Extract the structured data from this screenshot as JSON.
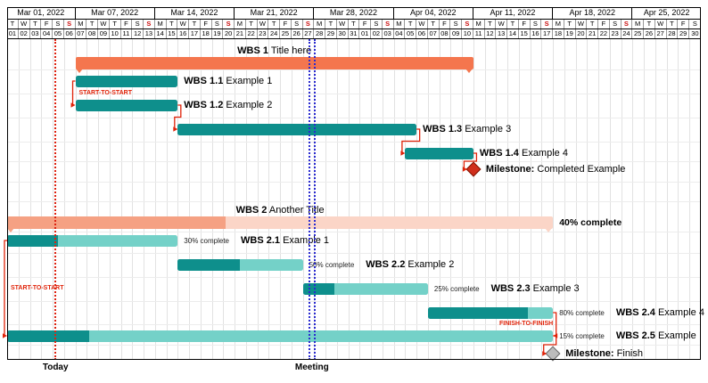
{
  "header": {
    "weeks": [
      {
        "label": "Mar 01, 2022",
        "days": 6
      },
      {
        "label": "Mar 07, 2022",
        "days": 7
      },
      {
        "label": "Mar 14, 2022",
        "days": 7
      },
      {
        "label": "Mar 21, 2022",
        "days": 7
      },
      {
        "label": "Mar 28, 2022",
        "days": 7
      },
      {
        "label": "Apr 04, 2022",
        "days": 7
      },
      {
        "label": "Apr 11, 2022",
        "days": 7
      },
      {
        "label": "Apr 18, 2022",
        "days": 7
      },
      {
        "label": "Apr 25, 2022",
        "days": 6
      }
    ],
    "day_letters": [
      "T",
      "W",
      "T",
      "F",
      "S",
      "S",
      "M",
      "T",
      "W",
      "T",
      "F",
      "S",
      "S",
      "M",
      "T",
      "W",
      "T",
      "F",
      "S",
      "S",
      "M",
      "T",
      "W",
      "T",
      "F",
      "S",
      "S",
      "M",
      "T",
      "W",
      "T",
      "F",
      "S",
      "S",
      "M",
      "T",
      "W",
      "T",
      "F",
      "S",
      "S",
      "M",
      "T",
      "W",
      "T",
      "F",
      "S",
      "S",
      "M",
      "T",
      "W",
      "T",
      "F",
      "S",
      "S",
      "M",
      "T",
      "W",
      "T",
      "F",
      "S"
    ],
    "day_numbers": [
      "01",
      "02",
      "03",
      "04",
      "05",
      "06",
      "07",
      "08",
      "09",
      "10",
      "11",
      "12",
      "13",
      "14",
      "15",
      "16",
      "17",
      "18",
      "19",
      "20",
      "21",
      "22",
      "23",
      "24",
      "25",
      "26",
      "27",
      "28",
      "29",
      "30",
      "31",
      "01",
      "02",
      "03",
      "04",
      "05",
      "06",
      "07",
      "08",
      "09",
      "10",
      "11",
      "12",
      "13",
      "14",
      "15",
      "16",
      "17",
      "18",
      "19",
      "20",
      "21",
      "22",
      "23",
      "24",
      "25",
      "26",
      "27",
      "28",
      "29",
      "30"
    ],
    "sundays": [
      5,
      12,
      19,
      26,
      33,
      40,
      47,
      54
    ]
  },
  "chart_data": {
    "type": "gantt",
    "timeline": {
      "start_label": "Mar 01, 2022",
      "end_label": "Apr 30, 2022",
      "total_days": 61,
      "unit": "days"
    },
    "items": [
      {
        "id": "g1",
        "kind": "group",
        "row": 0,
        "start": 6,
        "end": 41,
        "label_bold": "WBS 1",
        "label_rest": " Title here"
      },
      {
        "id": "t11",
        "kind": "task",
        "row": 1,
        "start": 6,
        "end": 15,
        "label_bold": "WBS 1.1",
        "label_rest": " Example 1"
      },
      {
        "id": "t12",
        "kind": "task",
        "row": 2,
        "start": 6,
        "end": 15,
        "label_bold": "WBS 1.2",
        "label_rest": " Example 2"
      },
      {
        "id": "t13",
        "kind": "task",
        "row": 3,
        "start": 15,
        "end": 36,
        "label_bold": "WBS 1.3",
        "label_rest": " Example 3"
      },
      {
        "id": "t14",
        "kind": "task",
        "row": 4,
        "start": 35,
        "end": 41,
        "label_bold": "WBS 1.4",
        "label_rest": " Example 4"
      },
      {
        "id": "ms1",
        "kind": "milestone",
        "row": 5,
        "at": 41,
        "color": "red",
        "label_bold": "Milestone:",
        "label_rest": " Completed Example"
      },
      {
        "id": "g2",
        "kind": "group",
        "row": 6,
        "start": 0,
        "end": 48,
        "progress": 40,
        "progress_label": "40% complete",
        "label_bold": "WBS 2",
        "label_rest": " Another Title"
      },
      {
        "id": "t21",
        "kind": "task",
        "row": 7,
        "start": 0,
        "end": 15,
        "progress": 30,
        "progress_label": "30% complete",
        "label_bold": "WBS 2.1",
        "label_rest": " Example 1"
      },
      {
        "id": "t22",
        "kind": "task",
        "row": 8,
        "start": 15,
        "end": 26,
        "progress": 50,
        "progress_label": "50% complete",
        "label_bold": "WBS 2.2",
        "label_rest": " Example 2"
      },
      {
        "id": "t23",
        "kind": "task",
        "row": 9,
        "start": 26,
        "end": 37,
        "progress": 25,
        "progress_label": "25% complete",
        "label_bold": "WBS 2.3",
        "label_rest": " Example 3"
      },
      {
        "id": "t24",
        "kind": "task",
        "row": 10,
        "start": 37,
        "end": 48,
        "progress": 80,
        "progress_label": "80% complete",
        "label_bold": "WBS 2.4",
        "label_rest": " Example 4"
      },
      {
        "id": "t25",
        "kind": "task",
        "row": 11,
        "start": 0,
        "end": 48,
        "progress": 15,
        "progress_label": "15% complete",
        "label_bold": "WBS 2.5",
        "label_rest": " Example"
      },
      {
        "id": "ms2",
        "kind": "milestone",
        "row": 12,
        "at": 48,
        "color": "gray",
        "label_bold": "Milestone:",
        "label_rest": " Finish"
      }
    ],
    "links": [
      {
        "type": "start-to-start",
        "from": "t11",
        "to": "t12",
        "label": "START-TO-START"
      },
      {
        "type": "finish-to-start",
        "from": "t12",
        "to": "t13"
      },
      {
        "type": "finish-to-start",
        "from": "t13",
        "to": "t14"
      },
      {
        "type": "finish-to-start",
        "from": "t14",
        "to": "ms1"
      },
      {
        "type": "start-to-start",
        "from": "t21",
        "to": "t25",
        "label": "START-TO-START"
      },
      {
        "type": "finish-to-finish",
        "from": "t24",
        "to": "t25",
        "label": "FINISH-TO-FINISH"
      },
      {
        "type": "finish-to-start",
        "from": "t25",
        "to": "ms2"
      }
    ],
    "markers": [
      {
        "id": "today",
        "label": "Today",
        "days": [
          4.25
        ],
        "color": "#dd2211"
      },
      {
        "id": "meeting",
        "label": "Meeting",
        "days": [
          26.55,
          27.05
        ],
        "color": "#2b2bd0"
      }
    ]
  },
  "colors": {
    "group_bar": "#f4764e",
    "group_done": "#f5a183",
    "group_todo": "#fbd5c7",
    "task_done": "#0e8f8c",
    "task_todo": "#74d1c8",
    "milestone_red_fill": "#d02e1c",
    "milestone_red_edge": "#7c1404",
    "milestone_gray_fill": "#bcbcbc",
    "milestone_gray_edge": "#686868",
    "link": "#e02309",
    "sunday": "#cc1111",
    "grid_v": "#e2e2e2",
    "grid_h": "#ececec",
    "frame": "#000000"
  }
}
